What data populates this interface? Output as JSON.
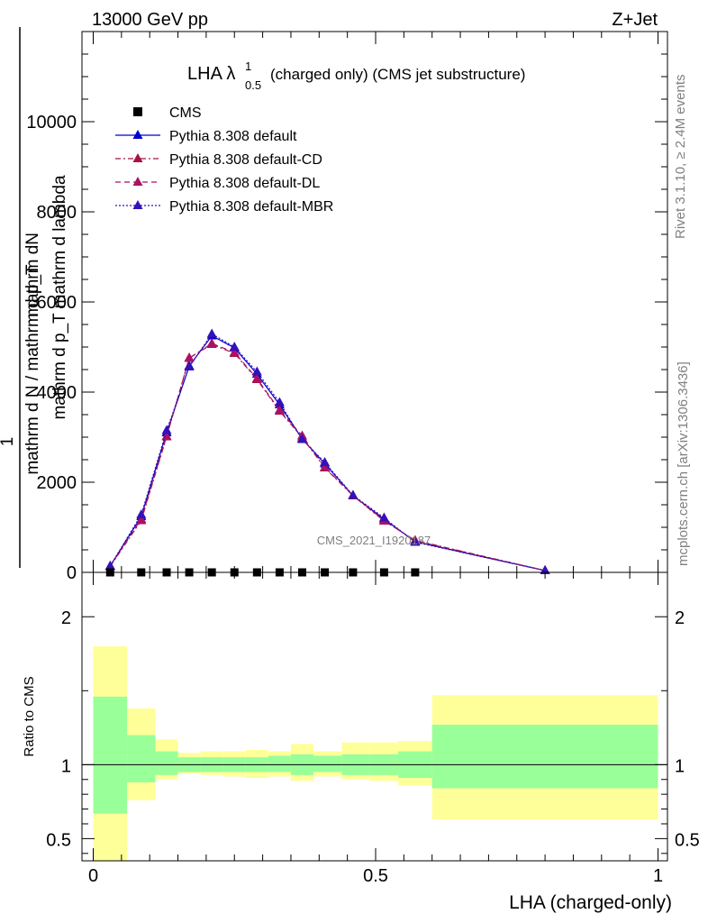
{
  "header": {
    "left": "13000 GeV pp",
    "right": "Z+Jet"
  },
  "side_labels": {
    "rivet": "Rivet 3.1.10, ≥ 2.4M events",
    "mcplots": "mcplots.cern.ch [arXiv:1306.3436]"
  },
  "colors": {
    "cms": "#000000",
    "default": "#0000cc",
    "default_cd": "#aa1144",
    "default_dl": "#aa1166",
    "default_mbr": "#3311bb",
    "band_inner": "#99ff99",
    "band_outer": "#ffff99"
  },
  "chart_data": [
    {
      "type": "line",
      "title_main": "LHA λ",
      "title_sup": "1",
      "title_sub": "0.5",
      "title_rest": "(charged only) (CMS jet substructure)",
      "ylabel_num": "mathrm dN",
      "ylabel_den": "mathrm d p_T mathrm d lambda",
      "ylabel_pre": "1",
      "ylabel_pre_den": "mathrm d N / mathrm d p_T",
      "watermark": "CMS_2021_I1920187",
      "ylim": [
        0,
        12000
      ],
      "y_ticks": [
        0,
        2000,
        4000,
        6000,
        8000,
        10000
      ],
      "y_tick_labels": [
        "0",
        "2000",
        "4000",
        "6000",
        "8000",
        "10000"
      ],
      "legend": [
        {
          "name": "CMS",
          "key": "cms"
        },
        {
          "name": "Pythia 8.308 default",
          "key": "default"
        },
        {
          "name": "Pythia 8.308 default-CD",
          "key": "default_cd"
        },
        {
          "name": "Pythia 8.308 default-DL",
          "key": "default_dl"
        },
        {
          "name": "Pythia 8.308 default-MBR",
          "key": "default_mbr"
        }
      ],
      "x": [
        0.03,
        0.085,
        0.13,
        0.17,
        0.21,
        0.25,
        0.29,
        0.33,
        0.37,
        0.41,
        0.46,
        0.515,
        0.57,
        0.8
      ],
      "series": [
        {
          "name": "Pythia 8.308 default",
          "key": "default",
          "values": [
            140,
            1240,
            3100,
            4580,
            5250,
            4980,
            4400,
            3720,
            2960,
            2410,
            1700,
            1180,
            680,
            40
          ]
        },
        {
          "name": "Pythia 8.308 default-CD",
          "key": "default_cd",
          "values": [
            130,
            1150,
            3010,
            4760,
            5060,
            4860,
            4280,
            3580,
            2990,
            2320,
            1700,
            1140,
            710,
            40
          ]
        },
        {
          "name": "Pythia 8.308 default-DL",
          "key": "default_dl",
          "values": [
            140,
            1180,
            3020,
            4750,
            5080,
            4880,
            4300,
            3600,
            3030,
            2330,
            1710,
            1150,
            700,
            40
          ]
        },
        {
          "name": "Pythia 8.308 default-MBR",
          "key": "default_mbr",
          "values": [
            140,
            1280,
            3150,
            4560,
            5290,
            5000,
            4450,
            3770,
            2950,
            2440,
            1710,
            1210,
            670,
            40
          ]
        }
      ],
      "cms_x": [
        0.03,
        0.085,
        0.13,
        0.17,
        0.21,
        0.25,
        0.29,
        0.33,
        0.37,
        0.41,
        0.46,
        0.515,
        0.57
      ],
      "cms_values": [
        0,
        0,
        0,
        0,
        0,
        0,
        0,
        0,
        0,
        0,
        0,
        0,
        0
      ]
    },
    {
      "type": "area",
      "ylabel": "Ratio to CMS",
      "xlabel": "LHA (charged-only)",
      "xlim": [
        -0.02,
        1.0
      ],
      "ylim": [
        0.35,
        2.3
      ],
      "x_ticks": [
        0,
        0.5,
        1
      ],
      "x_tick_labels": [
        "0",
        "0.5",
        "1"
      ],
      "y_ticks": [
        0.5,
        1,
        2
      ],
      "y_tick_labels": [
        "0.5",
        "1",
        "2"
      ],
      "bins": [
        {
          "lo": 0.0,
          "hi": 0.06,
          "inner": [
            0.67,
            1.46
          ],
          "outer": [
            0.35,
            1.8
          ]
        },
        {
          "lo": 0.06,
          "hi": 0.11,
          "inner": [
            0.88,
            1.2
          ],
          "outer": [
            0.76,
            1.38
          ]
        },
        {
          "lo": 0.11,
          "hi": 0.15,
          "inner": [
            0.93,
            1.09
          ],
          "outer": [
            0.9,
            1.17
          ]
        },
        {
          "lo": 0.15,
          "hi": 0.19,
          "inner": [
            0.95,
            1.05
          ],
          "outer": [
            0.94,
            1.08
          ]
        },
        {
          "lo": 0.19,
          "hi": 0.23,
          "inner": [
            0.95,
            1.05
          ],
          "outer": [
            0.93,
            1.09
          ]
        },
        {
          "lo": 0.23,
          "hi": 0.27,
          "inner": [
            0.95,
            1.05
          ],
          "outer": [
            0.92,
            1.09
          ]
        },
        {
          "lo": 0.27,
          "hi": 0.31,
          "inner": [
            0.95,
            1.05
          ],
          "outer": [
            0.91,
            1.1
          ]
        },
        {
          "lo": 0.31,
          "hi": 0.35,
          "inner": [
            0.95,
            1.06
          ],
          "outer": [
            0.92,
            1.09
          ]
        },
        {
          "lo": 0.35,
          "hi": 0.39,
          "inner": [
            0.93,
            1.07
          ],
          "outer": [
            0.89,
            1.14
          ]
        },
        {
          "lo": 0.39,
          "hi": 0.44,
          "inner": [
            0.95,
            1.06
          ],
          "outer": [
            0.92,
            1.09
          ]
        },
        {
          "lo": 0.44,
          "hi": 0.49,
          "inner": [
            0.93,
            1.07
          ],
          "outer": [
            0.9,
            1.15
          ]
        },
        {
          "lo": 0.49,
          "hi": 0.54,
          "inner": [
            0.93,
            1.07
          ],
          "outer": [
            0.89,
            1.15
          ]
        },
        {
          "lo": 0.54,
          "hi": 0.6,
          "inner": [
            0.91,
            1.09
          ],
          "outer": [
            0.86,
            1.16
          ]
        },
        {
          "lo": 0.6,
          "hi": 1.0,
          "inner": [
            0.84,
            1.27
          ],
          "outer": [
            0.63,
            1.47
          ]
        }
      ],
      "ratios": [
        {
          "key": "default",
          "values": [
            1.0,
            1.0,
            1.0,
            1.0,
            1.0,
            1.0,
            1.0,
            1.0,
            1.0,
            1.0,
            1.0,
            1.0,
            1.0,
            1.0
          ]
        }
      ]
    }
  ]
}
